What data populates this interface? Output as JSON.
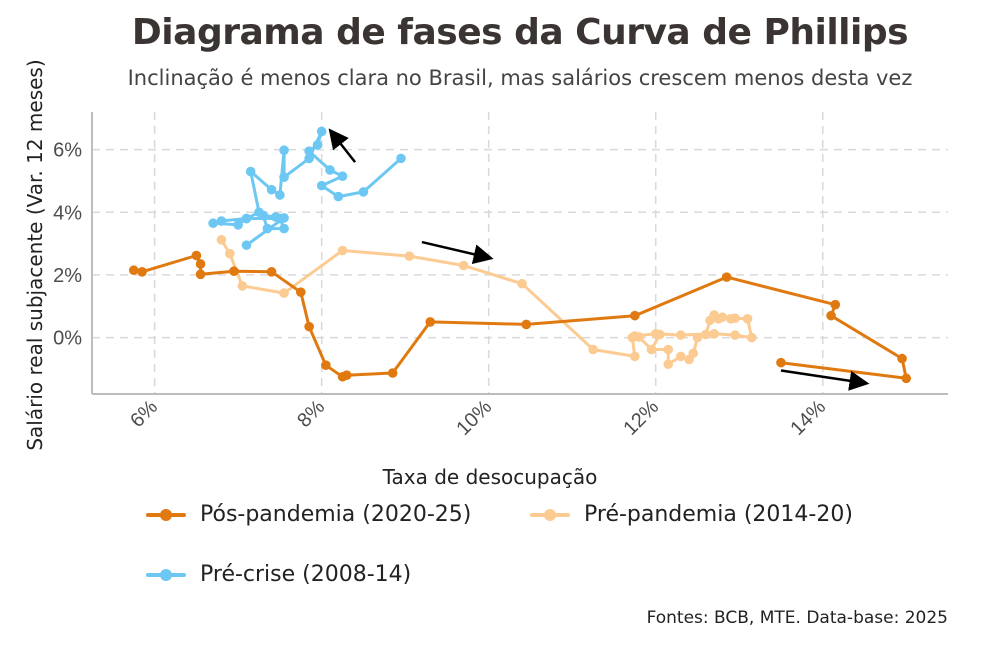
{
  "colors": {
    "pos": "#E07A10",
    "pre": "#FBCB92",
    "crise": "#6CC8F2",
    "grid": "#d9d9d9",
    "axis": "#bdbdbd",
    "arrow": "#000000"
  },
  "chart_data": {
    "type": "line",
    "title": "Diagrama de fases da Curva de Phillips",
    "subtitle": "Inclinação é menos clara no Brasil, mas salários crescem menos desta vez",
    "xlabel": "Taxa de desocupação",
    "ylabel": "Salário real subjacente (Var. 12 meses)",
    "xlim": [
      5.25,
      15.5
    ],
    "ylim": [
      -1.8,
      7.2
    ],
    "x_ticks": [
      6,
      8,
      10,
      12,
      14
    ],
    "x_tick_labels": [
      "6%",
      "8%",
      "10%",
      "12%",
      "14%"
    ],
    "y_ticks": [
      0,
      2,
      4,
      6
    ],
    "y_tick_labels": [
      "0%",
      "2%",
      "4%",
      "6%"
    ],
    "grid": true,
    "legend_position": "bottom",
    "source": "Fontes: BCB, MTE. Data-base: 2025",
    "series": [
      {
        "name": "Pós-pandemia (2020-25)",
        "color_key": "pos",
        "points": [
          [
            13.5,
            -0.8
          ],
          [
            15.0,
            -1.3
          ],
          [
            14.95,
            -0.67
          ],
          [
            14.1,
            0.7
          ],
          [
            14.15,
            1.05
          ],
          [
            12.85,
            1.93
          ],
          [
            11.75,
            0.7
          ],
          [
            10.45,
            0.42
          ],
          [
            9.3,
            0.5
          ],
          [
            8.85,
            -1.13
          ],
          [
            8.3,
            -1.2
          ],
          [
            8.25,
            -1.25
          ],
          [
            8.05,
            -0.88
          ],
          [
            7.85,
            0.35
          ],
          [
            7.75,
            1.45
          ],
          [
            7.4,
            2.1
          ],
          [
            6.95,
            2.12
          ],
          [
            6.55,
            2.02
          ],
          [
            6.55,
            2.35
          ],
          [
            6.5,
            2.62
          ],
          [
            5.85,
            2.1
          ],
          [
            5.75,
            2.15
          ]
        ]
      },
      {
        "name": "Pré-pandemia (2014-20)",
        "color_key": "pre",
        "points": [
          [
            6.8,
            3.12
          ],
          [
            6.9,
            2.68
          ],
          [
            7.05,
            1.65
          ],
          [
            7.55,
            1.42
          ],
          [
            8.25,
            2.78
          ],
          [
            9.05,
            2.6
          ],
          [
            9.7,
            2.3
          ],
          [
            10.4,
            1.72
          ],
          [
            11.25,
            -0.38
          ],
          [
            11.75,
            -0.6
          ],
          [
            11.72,
            0.0
          ],
          [
            11.8,
            0.02
          ],
          [
            11.95,
            -0.38
          ],
          [
            12.05,
            0.1
          ],
          [
            11.95,
            -0.38
          ],
          [
            12.15,
            -0.38
          ],
          [
            12.15,
            -0.85
          ],
          [
            12.3,
            -0.6
          ],
          [
            12.4,
            -0.7
          ],
          [
            12.45,
            -0.5
          ],
          [
            12.5,
            0.0
          ],
          [
            12.6,
            0.1
          ],
          [
            12.65,
            0.55
          ],
          [
            12.7,
            0.72
          ],
          [
            12.75,
            0.6
          ],
          [
            12.8,
            0.65
          ],
          [
            12.9,
            0.6
          ],
          [
            12.95,
            0.62
          ],
          [
            13.1,
            0.6
          ],
          [
            13.15,
            0.0
          ],
          [
            12.95,
            0.08
          ],
          [
            12.7,
            0.12
          ],
          [
            12.3,
            0.08
          ],
          [
            12.0,
            0.12
          ],
          [
            11.75,
            0.05
          ]
        ]
      },
      {
        "name": "Pré-crise (2008-14)",
        "color_key": "crise",
        "points": [
          [
            8.95,
            5.72
          ],
          [
            8.5,
            4.65
          ],
          [
            8.2,
            4.5
          ],
          [
            8.0,
            4.85
          ],
          [
            8.25,
            5.15
          ],
          [
            8.1,
            5.35
          ],
          [
            7.85,
            5.95
          ],
          [
            7.95,
            6.15
          ],
          [
            8.0,
            6.58
          ],
          [
            7.85,
            5.72
          ],
          [
            7.55,
            5.12
          ],
          [
            7.55,
            5.98
          ],
          [
            7.5,
            4.55
          ],
          [
            7.4,
            4.72
          ],
          [
            7.15,
            5.3
          ],
          [
            7.25,
            4.0
          ],
          [
            7.1,
            3.8
          ],
          [
            7.0,
            3.6
          ],
          [
            6.7,
            3.65
          ],
          [
            6.8,
            3.72
          ],
          [
            7.1,
            3.8
          ],
          [
            7.5,
            3.8
          ],
          [
            7.55,
            3.48
          ],
          [
            7.35,
            3.48
          ],
          [
            7.3,
            3.9
          ],
          [
            7.45,
            3.85
          ],
          [
            7.55,
            3.82
          ],
          [
            7.1,
            2.95
          ]
        ]
      }
    ],
    "arrows": [
      {
        "from": [
          8.4,
          5.6
        ],
        "to": [
          8.12,
          6.55
        ]
      },
      {
        "from": [
          9.2,
          3.05
        ],
        "to": [
          10.0,
          2.55
        ]
      },
      {
        "from": [
          13.5,
          -1.05
        ],
        "to": [
          14.5,
          -1.45
        ]
      }
    ]
  }
}
